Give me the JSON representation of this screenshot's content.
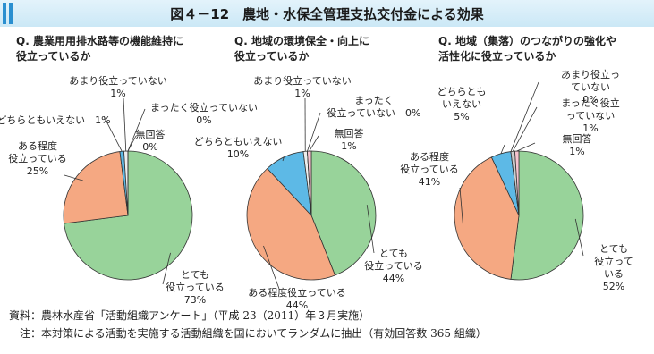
{
  "title": "図４－12　農地・水保全管理支払交付金による効果",
  "chart_data": [
    {
      "type": "pie",
      "title": "Q. 農業用用排水路等の機能維持に\n役立っているか",
      "categories": [
        "とても\n役立っている",
        "ある程度\n役立っている",
        "どちらともいえない",
        "あまり役立っていない",
        "まったく役立っていない",
        "無回答"
      ],
      "values": [
        73,
        25,
        1,
        1,
        0,
        0
      ],
      "value_labels": [
        "73%",
        "25%",
        "1%",
        "1%",
        "0%",
        "0%"
      ],
      "colors": [
        "#98d39a",
        "#f5a882",
        "#5db9e6",
        "#eeeeee",
        "#cccccc",
        "#f6c3cf"
      ]
    },
    {
      "type": "pie",
      "title": "Q. 地域の環境保全・向上に\n役立っているか",
      "categories": [
        "とても\n役立っている",
        "ある程度役立っている",
        "どちらともいえない",
        "あまり役立っていない",
        "まったく\n役立っていない",
        "無回答"
      ],
      "values": [
        44,
        44,
        10,
        1,
        0,
        1
      ],
      "value_labels": [
        "44%",
        "44%",
        "10%",
        "1%",
        "0%",
        "1%"
      ],
      "colors": [
        "#98d39a",
        "#f5a882",
        "#5db9e6",
        "#eeeeee",
        "#cccccc",
        "#f6c3cf"
      ]
    },
    {
      "type": "pie",
      "title": "Q. 地域（集落）のつながりの強化や\n活性化に役立っているか",
      "categories": [
        "とても\n役立っている",
        "ある程度\n役立っている",
        "どちらとも\nいえない",
        "あまり役立っていない",
        "まったく役立っていない",
        "無回答"
      ],
      "values": [
        52,
        41,
        5,
        0,
        1,
        1
      ],
      "value_labels": [
        "52%",
        "41%",
        "5%",
        "0%",
        "1%",
        "1%"
      ],
      "colors": [
        "#98d39a",
        "#f5a882",
        "#5db9e6",
        "#eeeeee",
        "#cccccc",
        "#f6c3cf"
      ]
    }
  ],
  "notes": [
    "資料：農林水産省「活動組織アンケート」（平成 23（2011）年３月実施）",
    "注：本対策による活動を実施する活動組織を国においてランダムに抽出（有効回答数 365 組織）"
  ]
}
